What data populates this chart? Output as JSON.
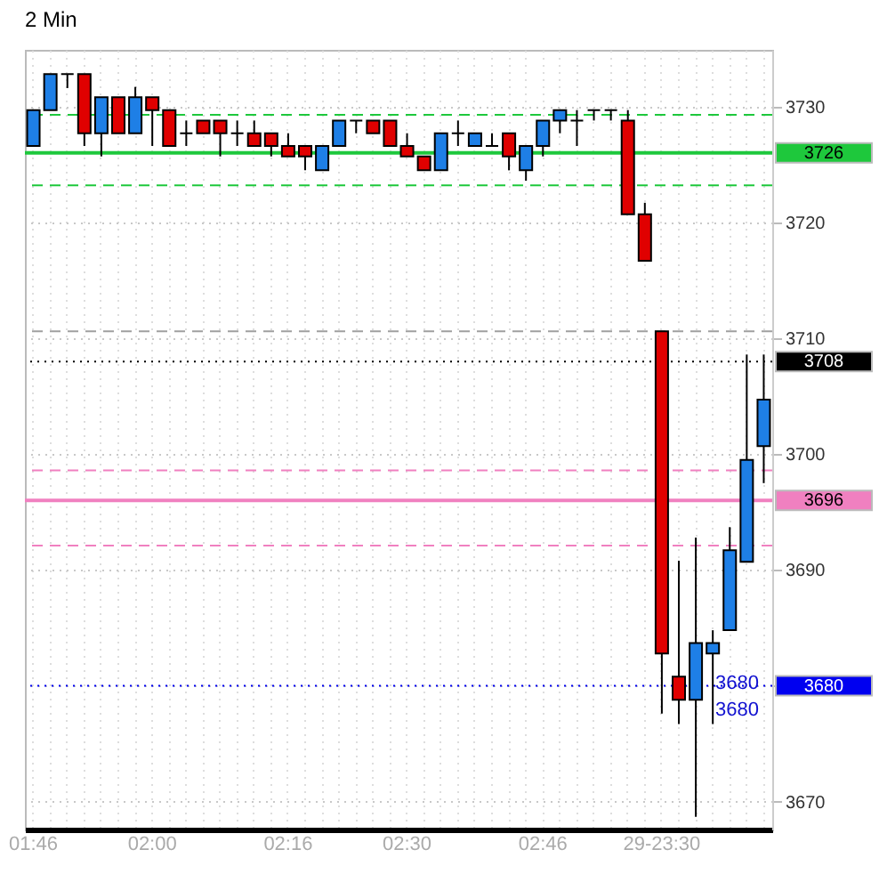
{
  "chart_data": {
    "type": "candlestick",
    "title": "2 Min",
    "categories": [
      "01:46",
      null,
      null,
      null,
      null,
      null,
      null,
      "02:00",
      null,
      null,
      null,
      null,
      null,
      null,
      null,
      "02:16",
      null,
      null,
      null,
      null,
      null,
      null,
      "02:30",
      null,
      null,
      null,
      null,
      null,
      null,
      null,
      "02:46",
      null,
      null,
      null,
      null,
      null,
      null,
      "29-23:30",
      null,
      null,
      null,
      null,
      null,
      null
    ],
    "ohlc": [
      [
        3726.6,
        3729.7,
        3726.6,
        3729.7
      ],
      [
        3729.7,
        3732.8,
        3729.7,
        3732.8
      ],
      [
        3732.8,
        3732.8,
        3731.6,
        3732.8
      ],
      [
        3732.8,
        3732.8,
        3726.6,
        3727.7
      ],
      [
        3727.7,
        3730.8,
        3725.7,
        3730.8
      ],
      [
        3730.8,
        3730.8,
        3727.7,
        3727.7
      ],
      [
        3727.7,
        3731.7,
        3727.7,
        3730.8
      ],
      [
        3730.8,
        3730.8,
        3726.6,
        3729.7
      ],
      [
        3729.7,
        3729.7,
        3726.6,
        3726.6
      ],
      [
        3727.7,
        3728.8,
        3726.6,
        3727.7
      ],
      [
        3728.8,
        3728.8,
        3727.7,
        3727.7
      ],
      [
        3728.8,
        3728.8,
        3725.7,
        3727.7
      ],
      [
        3727.7,
        3728.8,
        3726.6,
        3727.7
      ],
      [
        3727.7,
        3728.8,
        3726.6,
        3726.6
      ],
      [
        3727.7,
        3727.7,
        3725.7,
        3726.6
      ],
      [
        3726.6,
        3727.7,
        3725.7,
        3725.7
      ],
      [
        3726.6,
        3726.6,
        3724.5,
        3725.7
      ],
      [
        3724.5,
        3726.6,
        3724.5,
        3726.6
      ],
      [
        3726.6,
        3728.8,
        3726.6,
        3728.8
      ],
      [
        3728.8,
        3728.8,
        3727.7,
        3728.8
      ],
      [
        3728.8,
        3728.8,
        3727.7,
        3727.7
      ],
      [
        3728.8,
        3728.8,
        3726.6,
        3726.6
      ],
      [
        3726.6,
        3727.7,
        3725.7,
        3725.7
      ],
      [
        3725.7,
        3725.7,
        3724.5,
        3724.5
      ],
      [
        3724.5,
        3727.7,
        3724.5,
        3727.7
      ],
      [
        3727.7,
        3728.8,
        3726.6,
        3727.7
      ],
      [
        3726.6,
        3727.7,
        3726.6,
        3727.7
      ],
      [
        3726.6,
        3727.7,
        3726.6,
        3726.6
      ],
      [
        3727.7,
        3727.7,
        3724.5,
        3725.7
      ],
      [
        3724.5,
        3726.6,
        3723.6,
        3726.6
      ],
      [
        3726.6,
        3728.8,
        3725.7,
        3728.8
      ],
      [
        3728.8,
        3729.7,
        3727.7,
        3729.7
      ],
      [
        3728.8,
        3729.7,
        3726.6,
        3728.8
      ],
      [
        3729.7,
        3729.7,
        3728.8,
        3729.7
      ],
      [
        3729.7,
        3729.7,
        3728.8,
        3729.7
      ],
      [
        3728.8,
        3729.7,
        3720.7,
        3720.7
      ],
      [
        3720.7,
        3721.7,
        3716.7,
        3716.7
      ],
      [
        3710.6,
        3710.6,
        3677.6,
        3682.8
      ],
      [
        3680.8,
        3690.8,
        3676.7,
        3678.8
      ],
      [
        3678.8,
        3692.8,
        3668.7,
        3683.7
      ],
      [
        3682.8,
        3684.8,
        3676.7,
        3683.7
      ],
      [
        3684.8,
        3693.7,
        3684.8,
        3691.7
      ],
      [
        3690.7,
        3708.6,
        3690.7,
        3699.5
      ],
      [
        3700.7,
        3708.6,
        3697.5,
        3704.7
      ]
    ],
    "colors": [
      "#1e7fe6",
      "#1e7fe6",
      "#000000",
      "#e00000",
      "#1e7fe6",
      "#e00000",
      "#1e7fe6",
      "#e00000",
      "#e00000",
      "#000000",
      "#e00000",
      "#e00000",
      "#000000",
      "#e00000",
      "#e00000",
      "#e00000",
      "#e00000",
      "#1e7fe6",
      "#1e7fe6",
      "#000000",
      "#e00000",
      "#e00000",
      "#e00000",
      "#e00000",
      "#1e7fe6",
      "#000000",
      "#1e7fe6",
      "#000000",
      "#e00000",
      "#1e7fe6",
      "#1e7fe6",
      "#1e7fe6",
      "#000000",
      "#000000",
      "#000000",
      "#e00000",
      "#e00000",
      "#e00000",
      "#e00000",
      "#1e7fe6",
      "#1e7fe6",
      "#1e7fe6",
      "#1e7fe6",
      "#1e7fe6"
    ],
    "ylim": [
      3667.6,
      3734.9
    ],
    "yticks": [
      3670,
      {
        "value": 3680,
        "label": null
      },
      3690,
      3700,
      3710,
      3720,
      3730
    ],
    "grid": true,
    "ref_lines": [
      {
        "axis": "y",
        "value": 3729.3,
        "color": "#1ec83c",
        "line_style": "dashed"
      },
      {
        "axis": "y",
        "value": 3726,
        "label": "3726",
        "color": "#1ec83c",
        "line_style": "solid"
      },
      {
        "axis": "y",
        "value": 3723.2,
        "color": "#1ec83c",
        "line_style": "dashed"
      },
      {
        "axis": "y",
        "value": 3710.6,
        "color": "#a0a0a0",
        "line_style": "dashed"
      },
      {
        "axis": "y",
        "value": 3698.6,
        "color": "#f080c0",
        "line_style": "dashed"
      },
      {
        "axis": "y",
        "value": 3696,
        "label": "3696",
        "color": "#f080c0",
        "line_style": "solid"
      },
      {
        "axis": "y",
        "value": 3692.1,
        "color": "#f080c0",
        "line_style": "dashed"
      },
      {
        "axis": "y",
        "value": 3708,
        "label": "3708",
        "color": "#000000",
        "line_style": "dotted"
      },
      {
        "axis": "y",
        "value": 3680,
        "label": "3680",
        "color": "#0000f0",
        "line_style": "dotted"
      }
    ],
    "annotations": [
      "3680",
      "3680"
    ]
  }
}
